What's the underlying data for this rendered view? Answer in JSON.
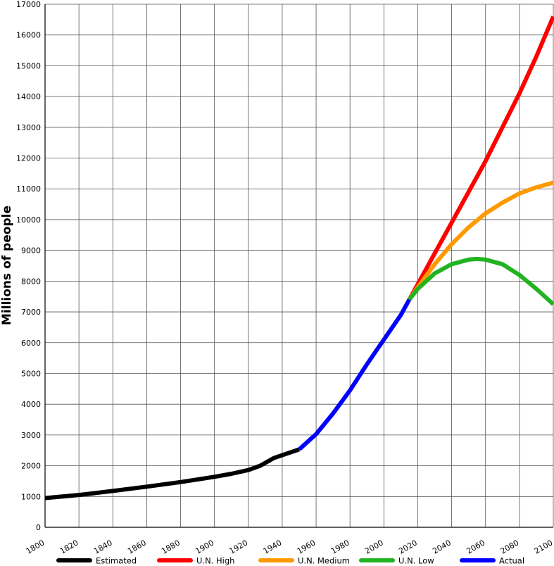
{
  "chart_data": {
    "type": "line",
    "title": "",
    "xlabel": "",
    "ylabel": "Millions of people",
    "xlim": [
      1800,
      2100
    ],
    "ylim": [
      0,
      17000
    ],
    "x_ticks": [
      1800,
      1820,
      1840,
      1860,
      1880,
      1900,
      1920,
      1940,
      1960,
      1980,
      2000,
      2020,
      2040,
      2060,
      2080,
      2100
    ],
    "y_ticks": [
      0,
      1000,
      2000,
      3000,
      4000,
      5000,
      6000,
      7000,
      8000,
      9000,
      10000,
      11000,
      12000,
      13000,
      14000,
      15000,
      16000,
      17000
    ],
    "grid": true,
    "legend_position": "bottom",
    "series": [
      {
        "name": "Estimated",
        "color": "#000000",
        "x": [
          1800,
          1820,
          1840,
          1860,
          1880,
          1900,
          1910,
          1920,
          1927,
          1935,
          1950
        ],
        "y": [
          950,
          1050,
          1180,
          1320,
          1470,
          1640,
          1740,
          1860,
          2000,
          2250,
          2530
        ]
      },
      {
        "name": "U.N. High",
        "color": "#ff0000",
        "x": [
          2015,
          2020,
          2030,
          2040,
          2050,
          2060,
          2070,
          2080,
          2090,
          2100
        ],
        "y": [
          7400,
          7900,
          8900,
          9900,
          10900,
          11900,
          13000,
          14100,
          15300,
          16600
        ]
      },
      {
        "name": "U.N. Medium",
        "color": "#ff9900",
        "x": [
          2015,
          2020,
          2030,
          2040,
          2050,
          2060,
          2070,
          2080,
          2090,
          2100
        ],
        "y": [
          7400,
          7800,
          8550,
          9200,
          9750,
          10200,
          10550,
          10850,
          11050,
          11200
        ]
      },
      {
        "name": "U.N. Low",
        "color": "#22b322",
        "x": [
          2015,
          2020,
          2030,
          2040,
          2050,
          2055,
          2060,
          2070,
          2080,
          2090,
          2100
        ],
        "y": [
          7400,
          7750,
          8250,
          8550,
          8700,
          8720,
          8700,
          8550,
          8200,
          7750,
          7250
        ]
      },
      {
        "name": "Actual",
        "color": "#0000ff",
        "x": [
          1950,
          1960,
          1970,
          1980,
          1990,
          2000,
          2010,
          2015
        ],
        "y": [
          2530,
          3030,
          3700,
          4450,
          5300,
          6100,
          6900,
          7400
        ]
      }
    ]
  }
}
